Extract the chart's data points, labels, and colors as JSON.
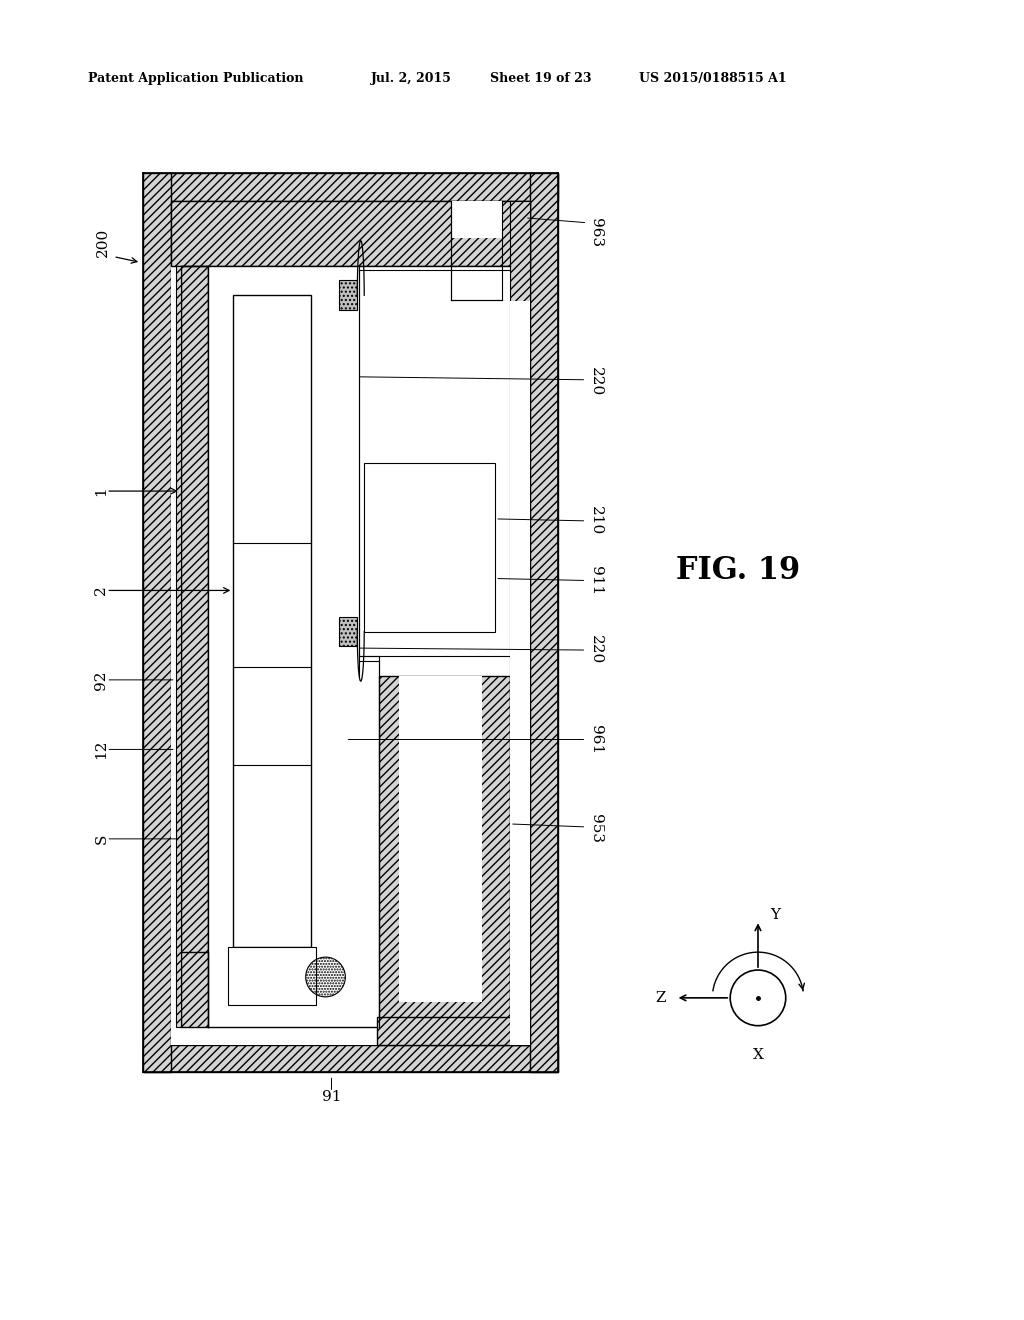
{
  "bg_color": "#ffffff",
  "header_text": "Patent Application Publication",
  "header_date": "Jul. 2, 2015",
  "header_sheet": "Sheet 19 of 23",
  "header_patent": "US 2015/0188515 A1",
  "fig_label": "FIG. 19",
  "hatch_pattern": "////",
  "line_color": "#000000"
}
